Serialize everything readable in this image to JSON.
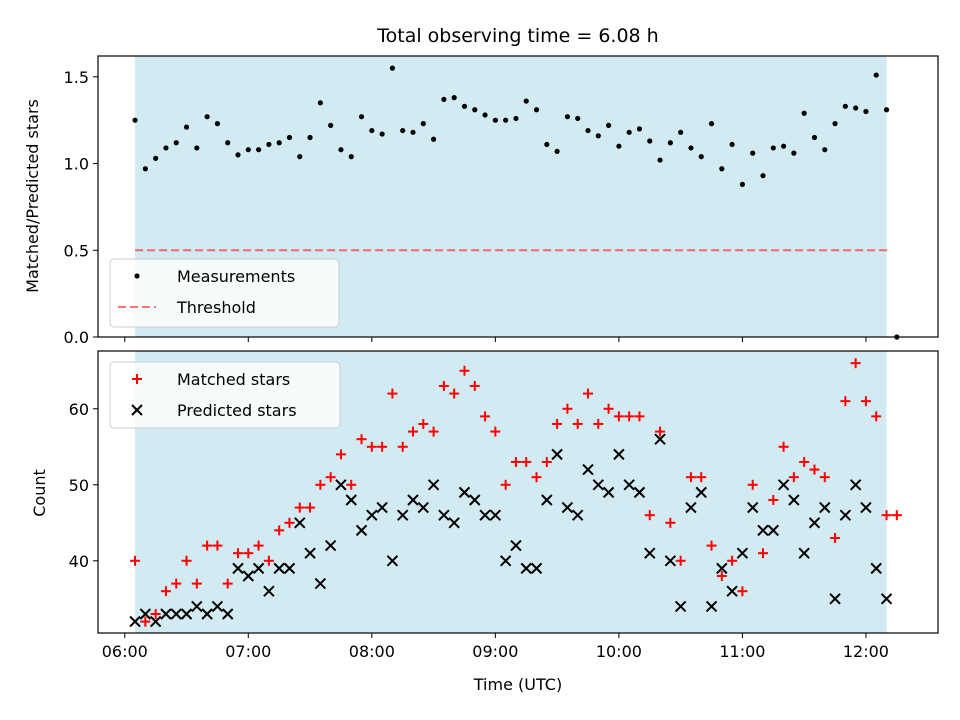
{
  "title": "Total observing time = 6.08 h",
  "colors": {
    "shade": "#ADD8E6",
    "measurement": "#000000",
    "threshold": "#FF0000",
    "matched": "#FF0000",
    "predicted": "#000000"
  },
  "chart_data": [
    {
      "type": "scatter",
      "panel": "top",
      "xlabel": "",
      "ylabel": "Matched/Predicted stars",
      "ylim": [
        0.0,
        1.62
      ],
      "yticks": [
        0.0,
        0.5,
        1.0,
        1.5
      ],
      "ytick_labels": [
        "0.0",
        "0.5",
        "1.0",
        "1.5"
      ],
      "shaded_span": [
        "06:05",
        "12:10"
      ],
      "legend_position": "lower-left",
      "series": [
        {
          "name": "Measurements",
          "marker": "dot",
          "points": [
            [
              "06:05",
              1.25
            ],
            [
              "06:10",
              0.97
            ],
            [
              "06:15",
              1.03
            ],
            [
              "06:20",
              1.09
            ],
            [
              "06:25",
              1.12
            ],
            [
              "06:30",
              1.21
            ],
            [
              "06:35",
              1.09
            ],
            [
              "06:40",
              1.27
            ],
            [
              "06:45",
              1.23
            ],
            [
              "06:50",
              1.12
            ],
            [
              "06:55",
              1.05
            ],
            [
              "07:00",
              1.08
            ],
            [
              "07:05",
              1.08
            ],
            [
              "07:10",
              1.11
            ],
            [
              "07:15",
              1.12
            ],
            [
              "07:20",
              1.15
            ],
            [
              "07:25",
              1.04
            ],
            [
              "07:30",
              1.15
            ],
            [
              "07:35",
              1.35
            ],
            [
              "07:40",
              1.22
            ],
            [
              "07:45",
              1.08
            ],
            [
              "07:50",
              1.04
            ],
            [
              "07:55",
              1.27
            ],
            [
              "08:00",
              1.19
            ],
            [
              "08:05",
              1.17
            ],
            [
              "08:10",
              1.55
            ],
            [
              "08:15",
              1.19
            ],
            [
              "08:20",
              1.18
            ],
            [
              "08:25",
              1.23
            ],
            [
              "08:30",
              1.14
            ],
            [
              "08:35",
              1.37
            ],
            [
              "08:40",
              1.38
            ],
            [
              "08:45",
              1.33
            ],
            [
              "08:50",
              1.31
            ],
            [
              "08:55",
              1.28
            ],
            [
              "09:00",
              1.25
            ],
            [
              "09:05",
              1.25
            ],
            [
              "09:10",
              1.26
            ],
            [
              "09:15",
              1.36
            ],
            [
              "09:20",
              1.31
            ],
            [
              "09:25",
              1.11
            ],
            [
              "09:30",
              1.07
            ],
            [
              "09:35",
              1.27
            ],
            [
              "09:40",
              1.26
            ],
            [
              "09:45",
              1.19
            ],
            [
              "09:50",
              1.16
            ],
            [
              "09:55",
              1.22
            ],
            [
              "10:00",
              1.1
            ],
            [
              "10:05",
              1.18
            ],
            [
              "10:10",
              1.2
            ],
            [
              "10:15",
              1.13
            ],
            [
              "10:20",
              1.02
            ],
            [
              "10:25",
              1.12
            ],
            [
              "10:30",
              1.18
            ],
            [
              "10:35",
              1.09
            ],
            [
              "10:40",
              1.04
            ],
            [
              "10:45",
              1.23
            ],
            [
              "10:50",
              0.97
            ],
            [
              "10:55",
              1.11
            ],
            [
              "11:00",
              0.88
            ],
            [
              "11:05",
              1.06
            ],
            [
              "11:10",
              0.93
            ],
            [
              "11:15",
              1.09
            ],
            [
              "11:20",
              1.1
            ],
            [
              "11:25",
              1.06
            ],
            [
              "11:30",
              1.29
            ],
            [
              "11:35",
              1.15
            ],
            [
              "11:40",
              1.08
            ],
            [
              "11:45",
              1.23
            ],
            [
              "11:50",
              1.33
            ],
            [
              "11:55",
              1.32
            ],
            [
              "12:00",
              1.3
            ],
            [
              "12:05",
              1.51
            ],
            [
              "12:10",
              1.31
            ],
            [
              "12:15",
              0.0
            ]
          ]
        },
        {
          "name": "Threshold",
          "marker": "dashed-line",
          "points": [
            [
              "06:05",
              0.5
            ],
            [
              "12:12",
              0.5
            ]
          ]
        }
      ]
    },
    {
      "type": "scatter",
      "panel": "bottom",
      "xlabel": "Time (UTC)",
      "ylabel": "Count",
      "ylim": [
        30.5,
        67.6
      ],
      "yticks": [
        40,
        50,
        60
      ],
      "ytick_labels": [
        "40",
        "50",
        "60"
      ],
      "xlim": [
        "05:47",
        "12:35"
      ],
      "xticks": [
        "06:00",
        "07:00",
        "08:00",
        "09:00",
        "10:00",
        "11:00",
        "12:00"
      ],
      "xtick_labels": [
        "06:00",
        "07:00",
        "08:00",
        "09:00",
        "10:00",
        "11:00",
        "12:00"
      ],
      "shaded_span": [
        "06:05",
        "12:10"
      ],
      "legend_position": "upper-left",
      "series": [
        {
          "name": "Matched stars",
          "marker": "plus",
          "points": [
            [
              "06:05",
              40
            ],
            [
              "06:10",
              32
            ],
            [
              "06:15",
              33
            ],
            [
              "06:20",
              36
            ],
            [
              "06:25",
              37
            ],
            [
              "06:30",
              40
            ],
            [
              "06:35",
              37
            ],
            [
              "06:40",
              42
            ],
            [
              "06:45",
              42
            ],
            [
              "06:50",
              37
            ],
            [
              "06:55",
              41
            ],
            [
              "07:00",
              41
            ],
            [
              "07:05",
              42
            ],
            [
              "07:10",
              40
            ],
            [
              "07:15",
              44
            ],
            [
              "07:20",
              45
            ],
            [
              "07:25",
              47
            ],
            [
              "07:30",
              47
            ],
            [
              "07:35",
              50
            ],
            [
              "07:40",
              51
            ],
            [
              "07:45",
              54
            ],
            [
              "07:50",
              50
            ],
            [
              "07:55",
              56
            ],
            [
              "08:00",
              55
            ],
            [
              "08:05",
              55
            ],
            [
              "08:10",
              62
            ],
            [
              "08:15",
              55
            ],
            [
              "08:20",
              57
            ],
            [
              "08:25",
              58
            ],
            [
              "08:30",
              57
            ],
            [
              "08:35",
              63
            ],
            [
              "08:40",
              62
            ],
            [
              "08:45",
              65
            ],
            [
              "08:50",
              63
            ],
            [
              "08:55",
              59
            ],
            [
              "09:00",
              57
            ],
            [
              "09:05",
              50
            ],
            [
              "09:10",
              53
            ],
            [
              "09:15",
              53
            ],
            [
              "09:20",
              51
            ],
            [
              "09:25",
              53
            ],
            [
              "09:30",
              58
            ],
            [
              "09:35",
              60
            ],
            [
              "09:40",
              58
            ],
            [
              "09:45",
              62
            ],
            [
              "09:50",
              58
            ],
            [
              "09:55",
              60
            ],
            [
              "10:00",
              59
            ],
            [
              "10:05",
              59
            ],
            [
              "10:10",
              59
            ],
            [
              "10:15",
              46
            ],
            [
              "10:20",
              57
            ],
            [
              "10:25",
              45
            ],
            [
              "10:30",
              40
            ],
            [
              "10:35",
              51
            ],
            [
              "10:40",
              51
            ],
            [
              "10:45",
              42
            ],
            [
              "10:50",
              38
            ],
            [
              "10:55",
              40
            ],
            [
              "11:00",
              36
            ],
            [
              "11:05",
              50
            ],
            [
              "11:10",
              41
            ],
            [
              "11:15",
              48
            ],
            [
              "11:20",
              55
            ],
            [
              "11:25",
              51
            ],
            [
              "11:30",
              53
            ],
            [
              "11:35",
              52
            ],
            [
              "11:40",
              51
            ],
            [
              "11:45",
              43
            ],
            [
              "11:50",
              61
            ],
            [
              "11:55",
              66
            ],
            [
              "12:00",
              61
            ],
            [
              "12:05",
              59
            ],
            [
              "12:10",
              46
            ],
            [
              "12:15",
              46
            ]
          ]
        },
        {
          "name": "Predicted stars",
          "marker": "x",
          "points": [
            [
              "06:05",
              32
            ],
            [
              "06:10",
              33
            ],
            [
              "06:15",
              32
            ],
            [
              "06:20",
              33
            ],
            [
              "06:25",
              33
            ],
            [
              "06:30",
              33
            ],
            [
              "06:35",
              34
            ],
            [
              "06:40",
              33
            ],
            [
              "06:45",
              34
            ],
            [
              "06:50",
              33
            ],
            [
              "06:55",
              39
            ],
            [
              "07:00",
              38
            ],
            [
              "07:05",
              39
            ],
            [
              "07:10",
              36
            ],
            [
              "07:15",
              39
            ],
            [
              "07:20",
              39
            ],
            [
              "07:25",
              45
            ],
            [
              "07:30",
              41
            ],
            [
              "07:35",
              37
            ],
            [
              "07:40",
              42
            ],
            [
              "07:45",
              50
            ],
            [
              "07:50",
              48
            ],
            [
              "07:55",
              44
            ],
            [
              "08:00",
              46
            ],
            [
              "08:05",
              47
            ],
            [
              "08:10",
              40
            ],
            [
              "08:15",
              46
            ],
            [
              "08:20",
              48
            ],
            [
              "08:25",
              47
            ],
            [
              "08:30",
              50
            ],
            [
              "08:35",
              46
            ],
            [
              "08:40",
              45
            ],
            [
              "08:45",
              49
            ],
            [
              "08:50",
              48
            ],
            [
              "08:55",
              46
            ],
            [
              "09:00",
              46
            ],
            [
              "09:05",
              40
            ],
            [
              "09:10",
              42
            ],
            [
              "09:15",
              39
            ],
            [
              "09:20",
              39
            ],
            [
              "09:25",
              48
            ],
            [
              "09:30",
              54
            ],
            [
              "09:35",
              47
            ],
            [
              "09:40",
              46
            ],
            [
              "09:45",
              52
            ],
            [
              "09:50",
              50
            ],
            [
              "09:55",
              49
            ],
            [
              "10:00",
              54
            ],
            [
              "10:05",
              50
            ],
            [
              "10:10",
              49
            ],
            [
              "10:15",
              41
            ],
            [
              "10:20",
              56
            ],
            [
              "10:25",
              40
            ],
            [
              "10:30",
              34
            ],
            [
              "10:35",
              47
            ],
            [
              "10:40",
              49
            ],
            [
              "10:45",
              34
            ],
            [
              "10:50",
              39
            ],
            [
              "10:55",
              36
            ],
            [
              "11:00",
              41
            ],
            [
              "11:05",
              47
            ],
            [
              "11:10",
              44
            ],
            [
              "11:15",
              44
            ],
            [
              "11:20",
              50
            ],
            [
              "11:25",
              48
            ],
            [
              "11:30",
              41
            ],
            [
              "11:35",
              45
            ],
            [
              "11:40",
              47
            ],
            [
              "11:45",
              35
            ],
            [
              "11:50",
              46
            ],
            [
              "11:55",
              50
            ],
            [
              "12:00",
              47
            ],
            [
              "12:05",
              39
            ],
            [
              "12:10",
              35
            ]
          ]
        }
      ]
    }
  ]
}
